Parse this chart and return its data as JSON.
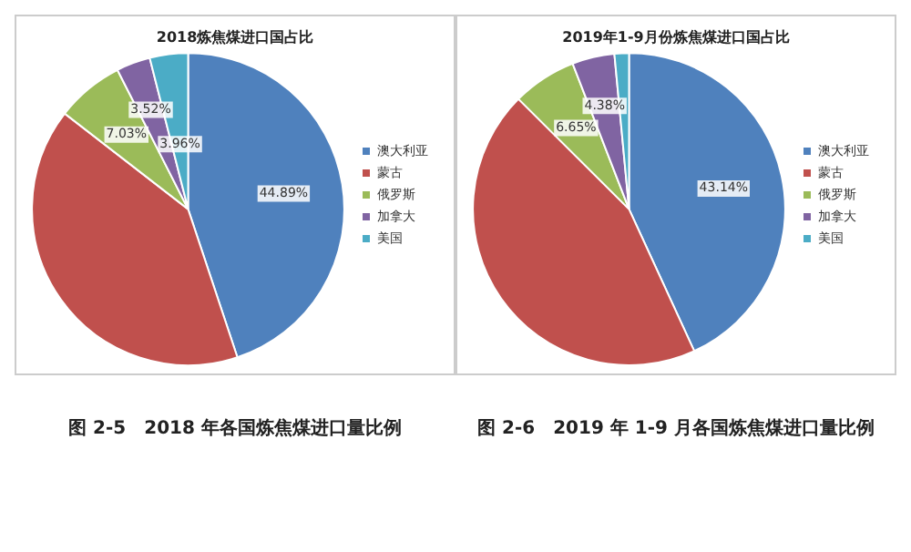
{
  "chart_data": [
    {
      "type": "pie",
      "title": "2018炼焦煤进口国占比",
      "categories": [
        "澳大利亚",
        "蒙古",
        "俄罗斯",
        "加拿大",
        "美国"
      ],
      "values": [
        44.89,
        40.6,
        7.03,
        3.52,
        3.96
      ],
      "colors": [
        "#4f81bd",
        "#c0504d",
        "#9bbb59",
        "#8064a2",
        "#4bacc6"
      ],
      "value_labels": [
        "44.89%",
        null,
        "7.03%",
        "3.52%",
        "3.96%"
      ],
      "legend": "right",
      "annotations": [
        "图 2-5　2018 年各国炼焦煤进口量比例"
      ]
    },
    {
      "type": "pie",
      "title": "2019年1-9月份炼焦煤进口国占比",
      "categories": [
        "澳大利亚",
        "蒙古",
        "俄罗斯",
        "加拿大",
        "美国"
      ],
      "values": [
        43.14,
        44.33,
        6.65,
        4.38,
        1.5
      ],
      "colors": [
        "#4f81bd",
        "#c0504d",
        "#9bbb59",
        "#8064a2",
        "#4bacc6"
      ],
      "value_labels": [
        "43.14%",
        null,
        "6.65%",
        "4.38%",
        null
      ],
      "legend": "right",
      "annotations": [
        "图 2-6　2019 年 1-9 月各国炼焦煤进口量比例"
      ]
    }
  ]
}
